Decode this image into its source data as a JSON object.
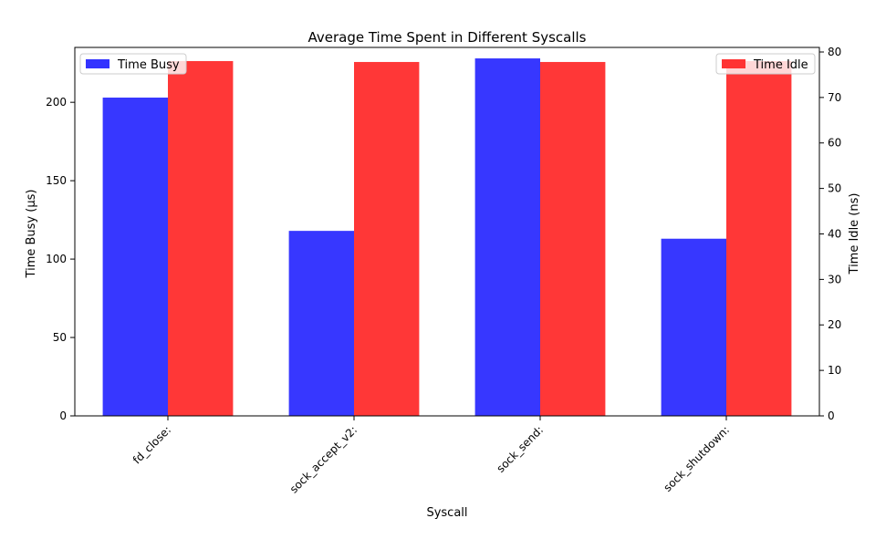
{
  "chart_data": {
    "type": "bar",
    "title": "Average Time Spent in Different Syscalls",
    "xlabel": "Syscall",
    "ylabel_left": "Time Busy (μs)",
    "ylabel_right": "Time Idle (ns)",
    "categories": [
      "fd_close:",
      "sock_accept_v2:",
      "sock_send:",
      "sock_shutdown:"
    ],
    "series": [
      {
        "name": "Time Busy",
        "axis": "left",
        "color": "#3333ff",
        "values": [
          203,
          118,
          228,
          113
        ]
      },
      {
        "name": "Time Idle",
        "axis": "right",
        "color": "#ff3333",
        "values": [
          78.0,
          77.8,
          77.8,
          78.0
        ]
      }
    ],
    "ylim_left": [
      0,
      235
    ],
    "ylim_right": [
      0,
      81
    ],
    "yticks_left": [
      0,
      50,
      100,
      150,
      200
    ],
    "yticks_right": [
      0,
      10,
      20,
      30,
      40,
      50,
      60,
      70,
      80
    ],
    "grid": false,
    "legend_left_placement": "top-left",
    "legend_right_placement": "top-right"
  }
}
